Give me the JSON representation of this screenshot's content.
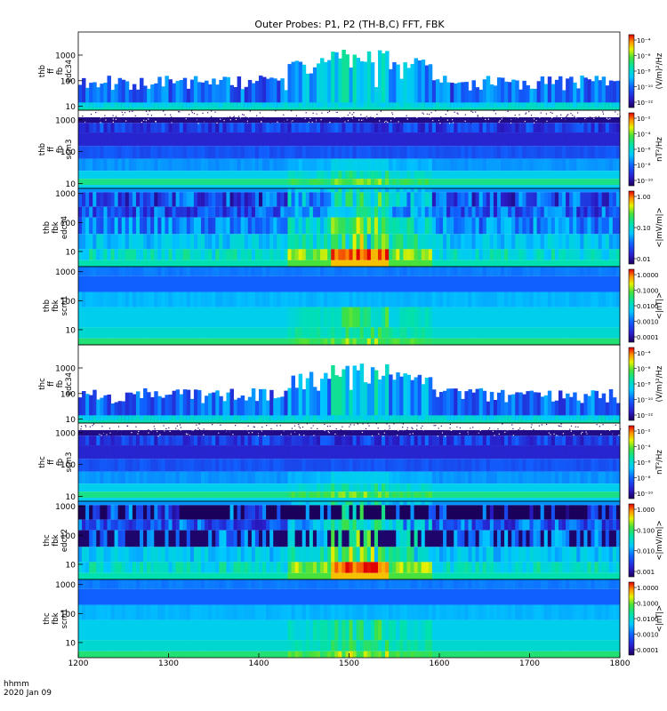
{
  "chart_data": {
    "type": "heatmap",
    "title": "Outer Probes: P1, P2 (TH-B,C) FFT, FBK",
    "x_axis": {
      "range": [
        1200,
        1800
      ],
      "ticks": [
        "1200",
        "1300",
        "1400",
        "1500",
        "1600",
        "1700",
        "1800"
      ],
      "label_line1": "hhmm",
      "label_line2": "2020 Jan 09"
    },
    "panels": [
      {
        "label": [
          "thb",
          "ff",
          "fb",
          "edc34"
        ],
        "y_ticks": [
          "10",
          "100",
          "1000"
        ],
        "y_range": [
          7,
          8000
        ],
        "y_scale": "log",
        "cbar_ticks": [
          "10⁻⁴",
          "10⁻⁶",
          "10⁻⁸",
          "10⁻¹⁰",
          "10⁻¹²"
        ],
        "cbar_unit": "(V/m)²/Hz",
        "style": "fft_e",
        "seed": 11,
        "active": 1.0
      },
      {
        "label": [
          "thb",
          "ff",
          "fb",
          "scm3"
        ],
        "y_ticks": [
          "10",
          "100",
          "1000"
        ],
        "y_range": [
          7,
          2000
        ],
        "y_scale": "log",
        "cbar_ticks": [
          "10⁻²",
          "10⁻⁴",
          "10⁻⁶",
          "10⁻⁸",
          "10⁻¹⁰"
        ],
        "cbar_unit": "nT²/Hz",
        "style": "fft_b",
        "seed": 23,
        "active": 1.0
      },
      {
        "label": [
          "thb",
          "fbk",
          "edc34"
        ],
        "y_ticks": [
          "10",
          "100",
          "1000"
        ],
        "y_range": [
          3,
          1500
        ],
        "y_scale": "log",
        "cbar_ticks": [
          "1.00",
          "0.10",
          "0.01"
        ],
        "cbar_unit": "<|mV/m|>",
        "style": "fbk_e",
        "seed": 37,
        "active": 1.0
      },
      {
        "label": [
          "thb",
          "fbk",
          "scm1"
        ],
        "y_ticks": [
          "10",
          "100",
          "1000"
        ],
        "y_range": [
          3,
          1500
        ],
        "y_scale": "log",
        "cbar_ticks": [
          "1.0000",
          "0.1000",
          "0.0100",
          "0.0010",
          "0.0001"
        ],
        "cbar_unit": "<|nT|>",
        "style": "fbk_b",
        "seed": 41,
        "active": 1.0
      },
      {
        "label": [
          "thc",
          "ff",
          "fb",
          "edc34"
        ],
        "y_ticks": [
          "10",
          "100",
          "1000"
        ],
        "y_range": [
          7,
          8000
        ],
        "y_scale": "log",
        "cbar_ticks": [
          "10⁻⁴",
          "10⁻⁶",
          "10⁻⁸",
          "10⁻¹⁰",
          "10⁻¹²"
        ],
        "cbar_unit": "(V/m)²/Hz",
        "style": "fft_e",
        "seed": 53,
        "active": 1.0
      },
      {
        "label": [
          "thc",
          "ff",
          "fb",
          "scm3"
        ],
        "y_ticks": [
          "10",
          "100",
          "1000"
        ],
        "y_range": [
          7,
          2000
        ],
        "y_scale": "log",
        "cbar_ticks": [
          "10⁻²",
          "10⁻⁴",
          "10⁻⁶",
          "10⁻⁸",
          "10⁻¹⁰"
        ],
        "cbar_unit": "nT²/Hz",
        "style": "fft_b",
        "seed": 67,
        "active": 1.0
      },
      {
        "label": [
          "thc",
          "fbk",
          "edc12"
        ],
        "y_ticks": [
          "10",
          "100",
          "1000"
        ],
        "y_range": [
          3,
          1500
        ],
        "y_scale": "log",
        "cbar_ticks": [
          "1.000",
          "0.100",
          "0.010",
          "0.001"
        ],
        "cbar_unit": "<|mV/m|>",
        "style": "fbk_e2",
        "seed": 79,
        "active": 1.0
      },
      {
        "label": [
          "thc",
          "fbk",
          "scm1"
        ],
        "y_ticks": [
          "10",
          "100",
          "1000"
        ],
        "y_range": [
          3,
          1500
        ],
        "y_scale": "log",
        "cbar_ticks": [
          "1.0000",
          "0.1000",
          "0.0100",
          "0.0010",
          "0.0001"
        ],
        "cbar_unit": "<|nT|>",
        "style": "fbk_b",
        "seed": 83,
        "active": 1.0
      }
    ],
    "activity_window": [
      1480,
      1545
    ]
  }
}
